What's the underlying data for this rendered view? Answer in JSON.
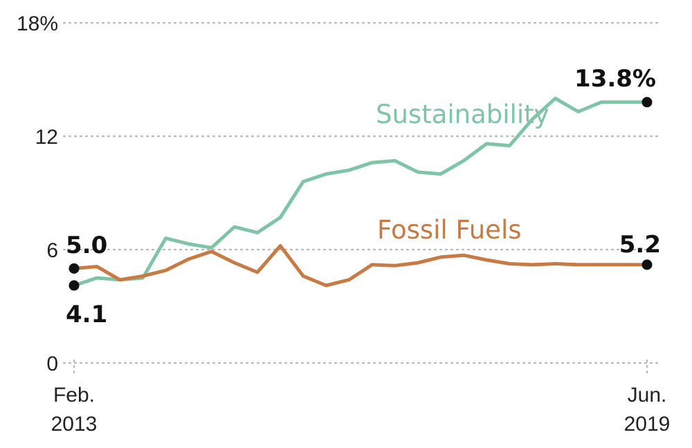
{
  "chart_data": {
    "type": "line",
    "title": "",
    "xlabel": "",
    "ylabel": "",
    "ylim": [
      0,
      18
    ],
    "grid": true,
    "y_ticks": [
      {
        "value": 0,
        "label": "0"
      },
      {
        "value": 6,
        "label": "6"
      },
      {
        "value": 12,
        "label": "12"
      },
      {
        "value": 18,
        "label": "18%"
      }
    ],
    "x_ticks": [
      {
        "value": 0,
        "line1": "Feb.",
        "line2": "2013"
      },
      {
        "value": 25,
        "line1": "Jun.",
        "line2": "2019"
      }
    ],
    "colors": {
      "sustainability": "#7fc4a6",
      "fossil": "#c87a45",
      "marker": "#111111",
      "grid": "#b5b5b5"
    },
    "series": [
      {
        "name": "Sustainability",
        "color_key": "sustainability",
        "x": [
          0,
          1,
          2,
          3,
          4,
          5,
          6,
          7,
          8,
          9,
          10,
          11,
          12,
          13,
          14,
          15,
          16,
          17,
          18,
          19,
          20,
          21,
          22,
          23,
          24,
          25
        ],
        "values": [
          4.1,
          4.5,
          4.4,
          4.5,
          6.6,
          6.3,
          6.1,
          7.2,
          6.9,
          7.7,
          9.6,
          10.0,
          10.2,
          10.6,
          10.7,
          10.1,
          10.0,
          10.7,
          11.6,
          11.5,
          12.9,
          14.0,
          13.3,
          13.8,
          null,
          null
        ],
        "label": "Sustainability",
        "end_label": "13.8%",
        "start_label": "4.1"
      },
      {
        "name": "Fossil Fuels",
        "color_key": "fossil",
        "x": [
          0,
          1,
          2,
          3,
          4,
          5,
          6,
          7,
          8,
          9,
          10,
          11,
          12,
          13,
          14,
          15,
          16,
          17,
          18,
          19,
          20,
          21,
          22,
          23,
          24,
          25
        ],
        "values": [
          5.0,
          5.1,
          4.4,
          4.6,
          4.9,
          5.5,
          5.9,
          5.3,
          4.8,
          6.2,
          4.6,
          4.1,
          4.4,
          5.2,
          5.15,
          5.3,
          5.6,
          5.7,
          5.45,
          5.25,
          5.2,
          5.25,
          5.2,
          5.2,
          null,
          null
        ],
        "label": "Fossil Fuels",
        "end_label": "5.2",
        "start_label": "5.0"
      }
    ]
  }
}
